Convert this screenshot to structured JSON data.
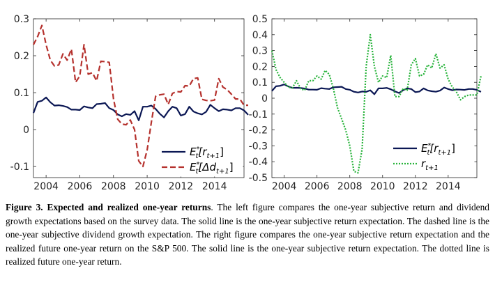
{
  "chart_data": [
    {
      "type": "line",
      "panel": "left",
      "x_start": 2003.25,
      "x_step": 0.25,
      "xlim": [
        2003.25,
        2015.75
      ],
      "ylim": [
        -0.13,
        0.3
      ],
      "xticks": [
        2004,
        2006,
        2008,
        2010,
        2012,
        2014
      ],
      "xtick_labels": [
        "2004",
        "2006",
        "2008",
        "2010",
        "2012",
        "2014"
      ],
      "yticks": [
        -0.1,
        0,
        0.1,
        0.2,
        0.3
      ],
      "ytick_labels": [
        "-0.1",
        "0",
        "0.1",
        "0.2",
        "0.3"
      ],
      "legend_position": "bottom-right",
      "series": [
        {
          "name": "E*t[rt+1]",
          "legend_main": "E",
          "legend_sup": "*",
          "legend_sub": "t",
          "legend_bracket": "[r",
          "legend_sub2": "t+1",
          "legend_close": "]",
          "style": "solid",
          "color": "#0b1754",
          "values": [
            0.045,
            0.075,
            0.078,
            0.087,
            0.074,
            0.065,
            0.066,
            0.064,
            0.061,
            0.054,
            0.054,
            0.053,
            0.063,
            0.06,
            0.058,
            0.069,
            0.07,
            0.072,
            0.058,
            0.053,
            0.041,
            0.036,
            0.042,
            0.04,
            0.05,
            0.025,
            0.062,
            0.062,
            0.065,
            0.056,
            0.043,
            0.033,
            0.05,
            0.062,
            0.058,
            0.038,
            0.042,
            0.062,
            0.049,
            0.044,
            0.041,
            0.048,
            0.067,
            0.058,
            0.05,
            0.055,
            0.054,
            0.052,
            0.058,
            0.058,
            0.052,
            0.04
          ]
        },
        {
          "name": "E*t[Δdt+1]",
          "legend_main": "E",
          "legend_sup": "*",
          "legend_sub": "t",
          "legend_bracket": "[Δd",
          "legend_sub2": "t+1",
          "legend_close": "]",
          "style": "dashed",
          "color": "#b5312d",
          "values": [
            0.23,
            0.252,
            0.282,
            0.23,
            0.188,
            0.172,
            0.175,
            0.205,
            0.188,
            0.218,
            0.128,
            0.145,
            0.23,
            0.15,
            0.154,
            0.132,
            0.185,
            0.184,
            0.182,
            0.083,
            0.028,
            0.015,
            0.013,
            0.026,
            0.0,
            -0.085,
            -0.1,
            -0.055,
            0.02,
            0.09,
            0.094,
            0.096,
            0.068,
            0.098,
            0.103,
            0.102,
            0.119,
            0.118,
            0.138,
            0.14,
            0.082,
            0.079,
            0.078,
            0.08,
            0.138,
            0.115,
            0.108,
            0.096,
            0.083,
            0.083,
            0.066,
            0.066
          ]
        }
      ]
    },
    {
      "type": "line",
      "panel": "right",
      "x_start": 2003.25,
      "x_step": 0.25,
      "xlim": [
        2003.25,
        2015.75
      ],
      "ylim": [
        -0.5,
        0.5
      ],
      "xticks": [
        2004,
        2006,
        2008,
        2010,
        2012,
        2014
      ],
      "xtick_labels": [
        "2004",
        "2006",
        "2008",
        "2010",
        "2012",
        "2014"
      ],
      "yticks": [
        -0.5,
        -0.4,
        -0.3,
        -0.2,
        -0.1,
        0,
        0.1,
        0.2,
        0.3,
        0.4,
        0.5
      ],
      "ytick_labels": [
        "-0.5",
        "-0.4",
        "-0.3",
        "-0.2",
        "-0.1",
        "0",
        "0.1",
        "0.2",
        "0.3",
        "0.4",
        "0.5"
      ],
      "legend_position": "bottom-right",
      "series": [
        {
          "name": "E*t[rt+1]",
          "legend_main": "E",
          "legend_sup": "*",
          "legend_sub": "t",
          "legend_bracket": "[r",
          "legend_sub2": "t+1",
          "legend_close": "]",
          "style": "solid",
          "color": "#0b1754",
          "values": [
            0.045,
            0.075,
            0.078,
            0.087,
            0.074,
            0.065,
            0.066,
            0.064,
            0.061,
            0.054,
            0.054,
            0.053,
            0.063,
            0.06,
            0.058,
            0.069,
            0.07,
            0.072,
            0.058,
            0.053,
            0.041,
            0.036,
            0.042,
            0.04,
            0.05,
            0.025,
            0.062,
            0.062,
            0.065,
            0.056,
            0.043,
            0.033,
            0.05,
            0.062,
            0.058,
            0.038,
            0.042,
            0.062,
            0.049,
            0.044,
            0.041,
            0.048,
            0.067,
            0.058,
            0.05,
            0.055,
            0.054,
            0.052,
            0.058,
            0.058,
            0.052,
            0.04
          ]
        },
        {
          "name": "rt+1",
          "legend_main": "r",
          "legend_sup": "",
          "legend_sub": "t+1",
          "legend_bracket": "",
          "legend_sub2": "",
          "legend_close": "",
          "style": "dotted",
          "color": "#27b33a",
          "values": [
            0.3,
            0.18,
            0.13,
            0.1,
            0.07,
            0.065,
            0.11,
            0.06,
            0.05,
            0.11,
            0.11,
            0.14,
            0.12,
            0.175,
            0.15,
            0.06,
            -0.06,
            -0.13,
            -0.2,
            -0.3,
            -0.46,
            -0.47,
            -0.32,
            0.2,
            0.4,
            0.2,
            0.1,
            0.14,
            0.13,
            0.27,
            0.01,
            0.01,
            0.06,
            0.05,
            0.21,
            0.25,
            0.14,
            0.15,
            0.21,
            0.19,
            0.28,
            0.19,
            0.21,
            0.12,
            0.07,
            0.04,
            -0.01,
            0.01,
            0.02,
            0.02,
            0.02,
            0.14
          ]
        }
      ]
    }
  ],
  "caption": {
    "label": "Figure 3.",
    "title": "Expected and realized one-year returns",
    "title_end": ".",
    "text": "The left figure compares the one-year subjective return and dividend growth expectations based on the survey data. The solid line is the one-year subjective return expectation. The dashed line is the one-year subjective dividend growth expectation. The right figure compares the one-year subjective return expectation and the realized future one-year return on the S&P 500. The solid line is the one-year subjective return expectation. The dotted line is realized future one-year return."
  }
}
